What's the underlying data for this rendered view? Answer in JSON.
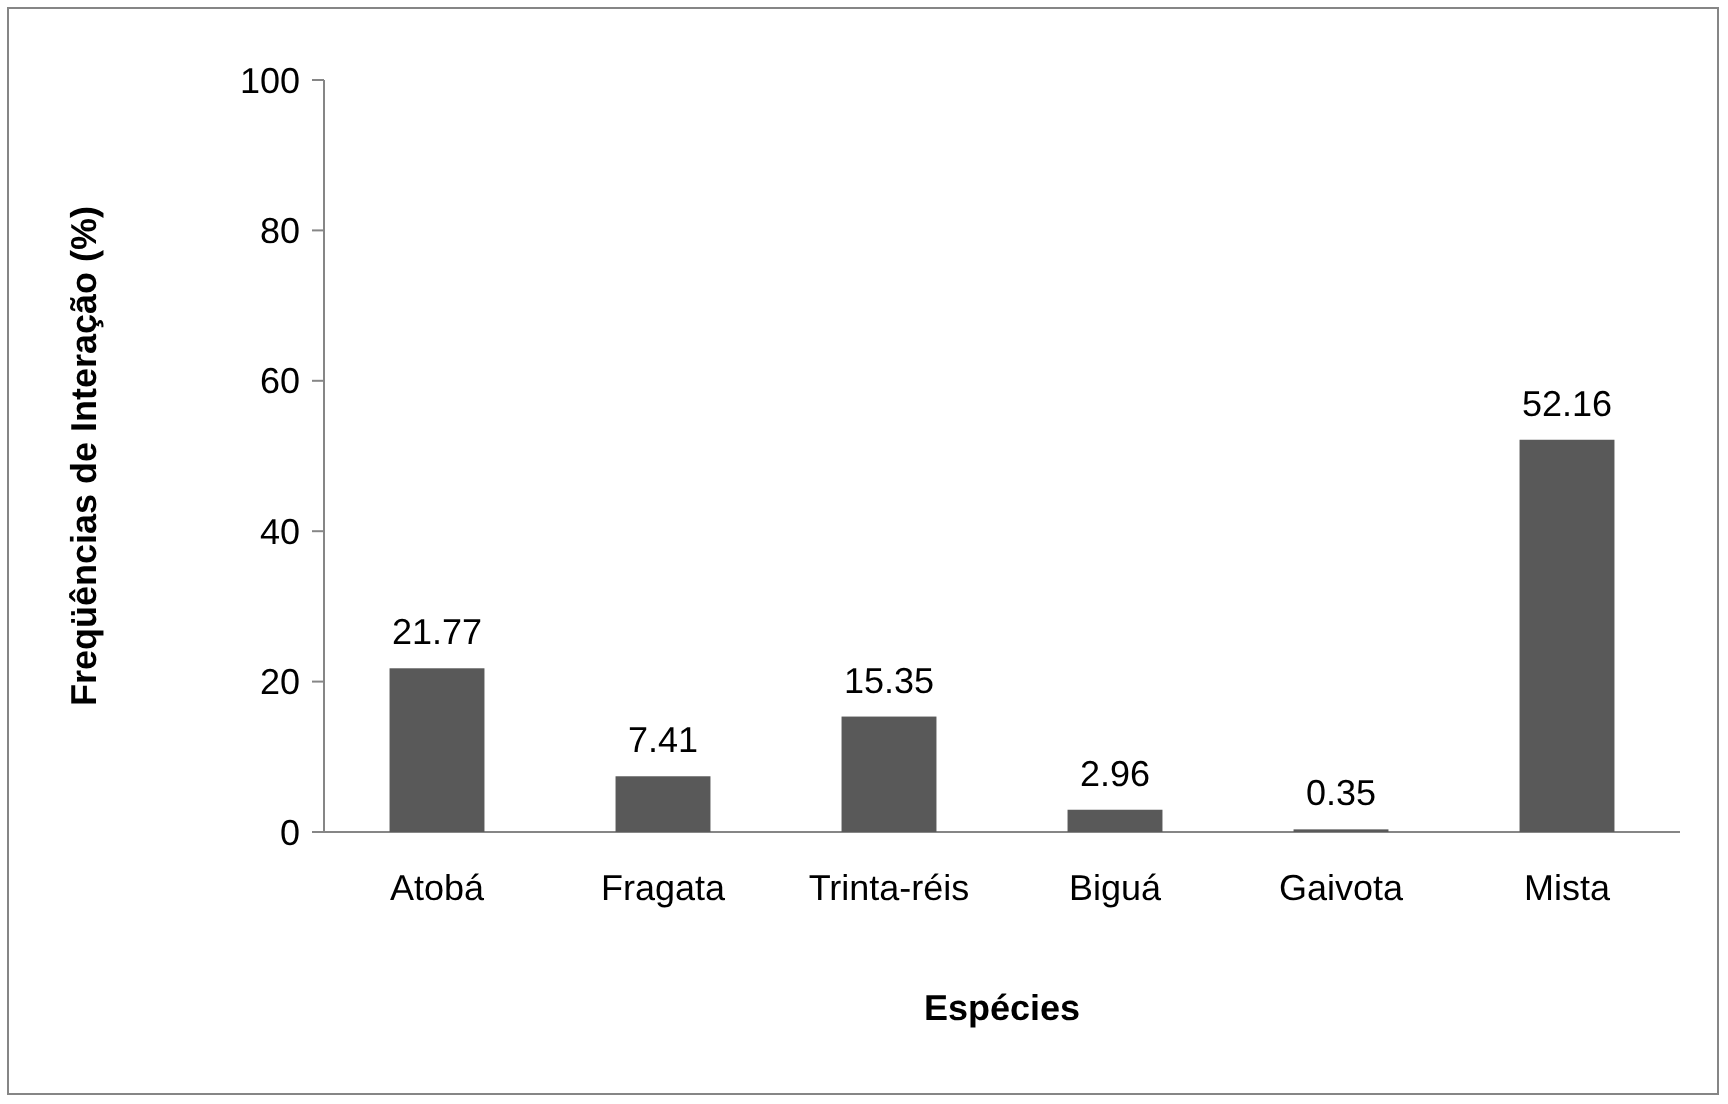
{
  "chart_data": {
    "type": "bar",
    "xlabel": "Espécies",
    "ylabel": "Freqüências de Interação (%)",
    "categories": [
      "Atobá",
      "Fragata",
      "Trinta-réis",
      "Biguá",
      "Gaivota",
      "Mista"
    ],
    "values": [
      21.77,
      7.41,
      15.35,
      2.96,
      0.35,
      52.16
    ],
    "color": "#595959",
    "ylim": [
      0,
      100
    ],
    "yticks": [
      0,
      20,
      40,
      60,
      80,
      100
    ],
    "data_labels": true
  }
}
